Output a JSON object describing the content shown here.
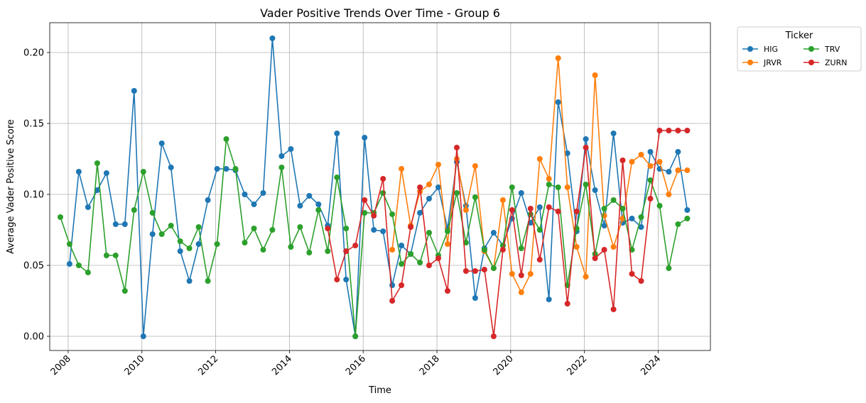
{
  "chart_data": {
    "type": "line",
    "title": "Vader Positive Trends Over Time - Group 6",
    "xlabel": "Time",
    "ylabel": "Average Vader Positive Score",
    "xlim": [
      "2007-07-01",
      "2025-06-01"
    ],
    "ylim": [
      -0.01,
      0.221
    ],
    "x_ticks": [
      "2008",
      "2010",
      "2012",
      "2014",
      "2016",
      "2018",
      "2020",
      "2022",
      "2024"
    ],
    "y_ticks": [
      "0.00",
      "0.05",
      "0.10",
      "0.15",
      "0.20"
    ],
    "grid": true,
    "legend": {
      "title": "Ticker",
      "placement": "outside-top-right",
      "columns": 2
    },
    "series": [
      {
        "name": "HIG",
        "color": "#1f77b4",
        "points": [
          [
            "2008-01",
            0.051
          ],
          [
            "2008-04",
            0.116
          ],
          [
            "2008-07",
            0.091
          ],
          [
            "2008-10",
            0.103
          ],
          [
            "2009-01",
            0.115
          ],
          [
            "2009-04",
            0.079
          ],
          [
            "2009-07",
            0.079
          ],
          [
            "2009-10",
            0.173
          ],
          [
            "2010-01",
            0.0
          ],
          [
            "2010-04",
            0.072
          ],
          [
            "2010-07",
            0.136
          ],
          [
            "2010-10",
            0.119
          ],
          [
            "2011-01",
            0.06
          ],
          [
            "2011-04",
            0.039
          ],
          [
            "2011-07",
            0.065
          ],
          [
            "2011-10",
            0.096
          ],
          [
            "2012-01",
            0.118
          ],
          [
            "2012-04",
            0.118
          ],
          [
            "2012-07",
            0.117
          ],
          [
            "2012-10",
            0.1
          ],
          [
            "2013-01",
            0.093
          ],
          [
            "2013-04",
            0.101
          ],
          [
            "2013-07",
            0.21
          ],
          [
            "2013-10",
            0.127
          ],
          [
            "2014-01",
            0.132
          ],
          [
            "2014-04",
            0.092
          ],
          [
            "2014-07",
            0.099
          ],
          [
            "2014-10",
            0.093
          ],
          [
            "2015-01",
            0.078
          ],
          [
            "2015-04",
            0.143
          ],
          [
            "2015-07",
            0.04
          ],
          [
            "2015-10",
            0.0
          ],
          [
            "2016-01",
            0.14
          ],
          [
            "2016-04",
            0.075
          ],
          [
            "2016-07",
            0.074
          ],
          [
            "2016-10",
            0.036
          ],
          [
            "2017-01",
            0.064
          ],
          [
            "2017-04",
            0.058
          ],
          [
            "2017-07",
            0.087
          ],
          [
            "2017-10",
            0.097
          ],
          [
            "2018-01",
            0.105
          ],
          [
            "2018-04",
            0.076
          ],
          [
            "2018-07",
            0.123
          ],
          [
            "2018-10",
            0.092
          ],
          [
            "2019-01",
            0.027
          ],
          [
            "2019-04",
            0.062
          ],
          [
            "2019-07",
            0.073
          ],
          [
            "2019-10",
            0.064
          ],
          [
            "2020-01",
            0.083
          ],
          [
            "2020-04",
            0.101
          ],
          [
            "2020-07",
            0.08
          ],
          [
            "2020-10",
            0.091
          ],
          [
            "2021-01",
            0.026
          ],
          [
            "2021-04",
            0.165
          ],
          [
            "2021-07",
            0.129
          ],
          [
            "2021-10",
            0.074
          ],
          [
            "2022-01",
            0.139
          ],
          [
            "2022-04",
            0.103
          ],
          [
            "2022-07",
            0.078
          ],
          [
            "2022-10",
            0.143
          ],
          [
            "2023-01",
            0.08
          ],
          [
            "2023-04",
            0.083
          ],
          [
            "2023-07",
            0.077
          ],
          [
            "2023-10",
            0.13
          ],
          [
            "2024-01",
            0.118
          ],
          [
            "2024-04",
            0.116
          ],
          [
            "2024-07",
            0.13
          ],
          [
            "2024-10",
            0.089
          ]
        ]
      },
      {
        "name": "JRVR",
        "color": "#ff7f0e",
        "points": [
          [
            "2016-10",
            0.061
          ],
          [
            "2017-01",
            0.118
          ],
          [
            "2017-04",
            0.078
          ],
          [
            "2017-07",
            0.102
          ],
          [
            "2017-10",
            0.107
          ],
          [
            "2018-01",
            0.121
          ],
          [
            "2018-04",
            0.065
          ],
          [
            "2018-07",
            0.125
          ],
          [
            "2018-10",
            0.089
          ],
          [
            "2019-01",
            0.12
          ],
          [
            "2019-04",
            0.06
          ],
          [
            "2019-07",
            0.048
          ],
          [
            "2019-10",
            0.096
          ],
          [
            "2020-01",
            0.044
          ],
          [
            "2020-04",
            0.031
          ],
          [
            "2020-07",
            0.044
          ],
          [
            "2020-10",
            0.125
          ],
          [
            "2021-01",
            0.111
          ],
          [
            "2021-04",
            0.196
          ],
          [
            "2021-07",
            0.105
          ],
          [
            "2021-10",
            0.063
          ],
          [
            "2022-01",
            0.042
          ],
          [
            "2022-04",
            0.184
          ],
          [
            "2022-07",
            0.085
          ],
          [
            "2022-10",
            0.063
          ],
          [
            "2023-01",
            0.083
          ],
          [
            "2023-04",
            0.123
          ],
          [
            "2023-07",
            0.128
          ],
          [
            "2023-10",
            0.12
          ],
          [
            "2024-01",
            0.123
          ],
          [
            "2024-04",
            0.1
          ],
          [
            "2024-07",
            0.117
          ],
          [
            "2024-10",
            0.117
          ]
        ]
      },
      {
        "name": "TRV",
        "color": "#2ca02c",
        "points": [
          [
            "2007-10",
            0.084
          ],
          [
            "2008-01",
            0.065
          ],
          [
            "2008-04",
            0.05
          ],
          [
            "2008-07",
            0.045
          ],
          [
            "2008-10",
            0.122
          ],
          [
            "2009-01",
            0.057
          ],
          [
            "2009-04",
            0.057
          ],
          [
            "2009-07",
            0.032
          ],
          [
            "2009-10",
            0.089
          ],
          [
            "2010-01",
            0.116
          ],
          [
            "2010-04",
            0.087
          ],
          [
            "2010-07",
            0.072
          ],
          [
            "2010-10",
            0.078
          ],
          [
            "2011-01",
            0.067
          ],
          [
            "2011-04",
            0.062
          ],
          [
            "2011-07",
            0.077
          ],
          [
            "2011-10",
            0.039
          ],
          [
            "2012-01",
            0.065
          ],
          [
            "2012-04",
            0.139
          ],
          [
            "2012-07",
            0.118
          ],
          [
            "2012-10",
            0.066
          ],
          [
            "2013-01",
            0.076
          ],
          [
            "2013-04",
            0.061
          ],
          [
            "2013-07",
            0.075
          ],
          [
            "2013-10",
            0.119
          ],
          [
            "2014-01",
            0.063
          ],
          [
            "2014-04",
            0.077
          ],
          [
            "2014-07",
            0.059
          ],
          [
            "2014-10",
            0.089
          ],
          [
            "2015-01",
            0.06
          ],
          [
            "2015-04",
            0.112
          ],
          [
            "2015-07",
            0.076
          ],
          [
            "2015-10",
            0.0
          ],
          [
            "2016-01",
            0.087
          ],
          [
            "2016-04",
            0.087
          ],
          [
            "2016-07",
            0.101
          ],
          [
            "2016-10",
            0.086
          ],
          [
            "2017-01",
            0.051
          ],
          [
            "2017-04",
            0.058
          ],
          [
            "2017-07",
            0.052
          ],
          [
            "2017-10",
            0.073
          ],
          [
            "2018-01",
            0.057
          ],
          [
            "2018-04",
            0.074
          ],
          [
            "2018-07",
            0.101
          ],
          [
            "2018-10",
            0.066
          ],
          [
            "2019-01",
            0.098
          ],
          [
            "2019-04",
            0.061
          ],
          [
            "2019-07",
            0.048
          ],
          [
            "2019-10",
            0.064
          ],
          [
            "2020-01",
            0.105
          ],
          [
            "2020-04",
            0.062
          ],
          [
            "2020-07",
            0.086
          ],
          [
            "2020-10",
            0.075
          ],
          [
            "2021-01",
            0.107
          ],
          [
            "2021-04",
            0.105
          ],
          [
            "2021-07",
            0.036
          ],
          [
            "2021-10",
            0.076
          ],
          [
            "2022-01",
            0.107
          ],
          [
            "2022-04",
            0.058
          ],
          [
            "2022-07",
            0.09
          ],
          [
            "2022-10",
            0.096
          ],
          [
            "2023-01",
            0.09
          ],
          [
            "2023-04",
            0.061
          ],
          [
            "2023-07",
            0.084
          ],
          [
            "2023-10",
            0.11
          ],
          [
            "2024-01",
            0.092
          ],
          [
            "2024-04",
            0.048
          ],
          [
            "2024-07",
            0.079
          ],
          [
            "2024-10",
            0.083
          ]
        ]
      },
      {
        "name": "ZURN",
        "color": "#d62728",
        "points": [
          [
            "2015-01",
            0.076
          ],
          [
            "2015-04",
            0.04
          ],
          [
            "2015-07",
            0.06
          ],
          [
            "2015-10",
            0.064
          ],
          [
            "2016-01",
            0.096
          ],
          [
            "2016-04",
            0.085
          ],
          [
            "2016-07",
            0.111
          ],
          [
            "2016-10",
            0.025
          ],
          [
            "2017-01",
            0.036
          ],
          [
            "2017-04",
            0.077
          ],
          [
            "2017-07",
            0.105
          ],
          [
            "2017-10",
            0.05
          ],
          [
            "2018-01",
            0.055
          ],
          [
            "2018-04",
            0.032
          ],
          [
            "2018-07",
            0.133
          ],
          [
            "2018-10",
            0.046
          ],
          [
            "2019-01",
            0.046
          ],
          [
            "2019-04",
            0.047
          ],
          [
            "2019-07",
            0.0
          ],
          [
            "2019-10",
            0.061
          ],
          [
            "2020-01",
            0.089
          ],
          [
            "2020-04",
            0.043
          ],
          [
            "2020-07",
            0.09
          ],
          [
            "2020-10",
            0.054
          ],
          [
            "2021-01",
            0.091
          ],
          [
            "2021-04",
            0.088
          ],
          [
            "2021-07",
            0.023
          ],
          [
            "2021-10",
            0.088
          ],
          [
            "2022-01",
            0.133
          ],
          [
            "2022-04",
            0.055
          ],
          [
            "2022-07",
            0.061
          ],
          [
            "2022-10",
            0.019
          ],
          [
            "2023-01",
            0.124
          ],
          [
            "2023-04",
            0.044
          ],
          [
            "2023-07",
            0.039
          ],
          [
            "2023-10",
            0.097
          ],
          [
            "2024-01",
            0.145
          ],
          [
            "2024-04",
            0.145
          ],
          [
            "2024-07",
            0.145
          ],
          [
            "2024-10",
            0.145
          ]
        ]
      }
    ]
  }
}
